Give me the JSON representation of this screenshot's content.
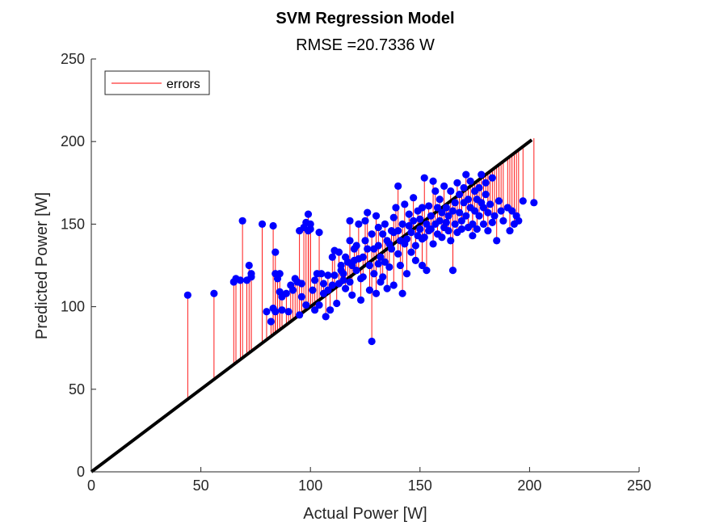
{
  "chart_data": {
    "type": "scatter",
    "title": "SVM Regression Model",
    "subtitle": "RMSE =20.7336 W",
    "xlabel": "Actual Power [W]",
    "ylabel": "Predicted Power [W]",
    "xlim": [
      0,
      250
    ],
    "ylim": [
      0,
      250
    ],
    "xticks": [
      "0",
      "50",
      "100",
      "150",
      "200",
      "250"
    ],
    "yticks": [
      "0",
      "50",
      "100",
      "150",
      "200",
      "250"
    ],
    "grid": false,
    "legend": {
      "position": "top-left",
      "entries": [
        "errors"
      ]
    },
    "colors": {
      "points": "#0000ff",
      "errors": "#ff0000",
      "reference": "#000000"
    },
    "reference_line": {
      "x": [
        0,
        201
      ],
      "y": [
        0,
        201
      ]
    },
    "series": [
      {
        "name": "errors",
        "points": [
          [
            44,
            107
          ],
          [
            56,
            108
          ],
          [
            65,
            115
          ],
          [
            66,
            117
          ],
          [
            68,
            116
          ],
          [
            69,
            152
          ],
          [
            71,
            116
          ],
          [
            72,
            125
          ],
          [
            73,
            118
          ],
          [
            73,
            120
          ],
          [
            78,
            150
          ],
          [
            80,
            97
          ],
          [
            82,
            91
          ],
          [
            83,
            99
          ],
          [
            83,
            149
          ],
          [
            84,
            97
          ],
          [
            84,
            120
          ],
          [
            84,
            133
          ],
          [
            85,
            117
          ],
          [
            86,
            120
          ],
          [
            86,
            109
          ],
          [
            87,
            106
          ],
          [
            87,
            98
          ],
          [
            89,
            108
          ],
          [
            90,
            97
          ],
          [
            91,
            113
          ],
          [
            92,
            110
          ],
          [
            93,
            117
          ],
          [
            94,
            115
          ],
          [
            95,
            95
          ],
          [
            95,
            146
          ],
          [
            96,
            114
          ],
          [
            96,
            106
          ],
          [
            97,
            148
          ],
          [
            98,
            101
          ],
          [
            98,
            151
          ],
          [
            99,
            156
          ],
          [
            99,
            146
          ],
          [
            100,
            150
          ],
          [
            100,
            147
          ],
          [
            101,
            110
          ],
          [
            102,
            98
          ],
          [
            102,
            116
          ],
          [
            103,
            120
          ],
          [
            104,
            101
          ],
          [
            104,
            145
          ],
          [
            105,
            120
          ],
          [
            106,
            108
          ],
          [
            106,
            114
          ],
          [
            107,
            94
          ],
          [
            108,
            119
          ],
          [
            108,
            110
          ],
          [
            109,
            98
          ],
          [
            110,
            113
          ],
          [
            110,
            130
          ],
          [
            111,
            134
          ],
          [
            111,
            119
          ],
          [
            112,
            102
          ],
          [
            113,
            114
          ],
          [
            113,
            133
          ],
          [
            114,
            125
          ],
          [
            114,
            122
          ],
          [
            115,
            120
          ],
          [
            115,
            116
          ],
          [
            116,
            111
          ],
          [
            116,
            130
          ],
          [
            117,
            127
          ],
          [
            118,
            140
          ],
          [
            118,
            152
          ],
          [
            118,
            115
          ],
          [
            119,
            107
          ],
          [
            119,
            125
          ],
          [
            120,
            135
          ],
          [
            120,
            128
          ],
          [
            121,
            137
          ],
          [
            121,
            122
          ],
          [
            122,
            150
          ],
          [
            122,
            129
          ],
          [
            123,
            117
          ],
          [
            123,
            104
          ],
          [
            124,
            130
          ],
          [
            124,
            118
          ],
          [
            125,
            140
          ],
          [
            125,
            152
          ],
          [
            126,
            157
          ],
          [
            126,
            135
          ],
          [
            127,
            110
          ],
          [
            127,
            125
          ],
          [
            128,
            144
          ],
          [
            128,
            79
          ],
          [
            129,
            120
          ],
          [
            129,
            135
          ],
          [
            130,
            108
          ],
          [
            130,
            155
          ],
          [
            131,
            126
          ],
          [
            131,
            137
          ],
          [
            131,
            148
          ],
          [
            132,
            115
          ],
          [
            132,
            130
          ],
          [
            133,
            118
          ],
          [
            133,
            144
          ],
          [
            134,
            127
          ],
          [
            134,
            150
          ],
          [
            135,
            140
          ],
          [
            135,
            111
          ],
          [
            136,
            138
          ],
          [
            136,
            124
          ],
          [
            137,
            135
          ],
          [
            137,
            146
          ],
          [
            138,
            113
          ],
          [
            138,
            145
          ],
          [
            138,
            154
          ],
          [
            139,
            160
          ],
          [
            140,
            132
          ],
          [
            140,
            146
          ],
          [
            140,
            173
          ],
          [
            141,
            140
          ],
          [
            141,
            125
          ],
          [
            142,
            150
          ],
          [
            142,
            108
          ],
          [
            143,
            138
          ],
          [
            143,
            162
          ],
          [
            144,
            141
          ],
          [
            144,
            120
          ],
          [
            145,
            149
          ],
          [
            145,
            156
          ],
          [
            146,
            133
          ],
          [
            146,
            145
          ],
          [
            147,
            152
          ],
          [
            147,
            166
          ],
          [
            148,
            137
          ],
          [
            148,
            128
          ],
          [
            149,
            143
          ],
          [
            149,
            158
          ],
          [
            150,
            147
          ],
          [
            150,
            153
          ],
          [
            151,
            160
          ],
          [
            151,
            141
          ],
          [
            151,
            125
          ],
          [
            152,
            178
          ],
          [
            152,
            142
          ],
          [
            153,
            150
          ],
          [
            153,
            122
          ],
          [
            154,
            146
          ],
          [
            154,
            161
          ],
          [
            155,
            155
          ],
          [
            155,
            147
          ],
          [
            156,
            176
          ],
          [
            156,
            138
          ],
          [
            157,
            150
          ],
          [
            157,
            170
          ],
          [
            158,
            144
          ],
          [
            158,
            160
          ],
          [
            159,
            152
          ],
          [
            159,
            165
          ],
          [
            160,
            142
          ],
          [
            160,
            157
          ],
          [
            161,
            148
          ],
          [
            161,
            173
          ],
          [
            162,
            151
          ],
          [
            162,
            160
          ],
          [
            163,
            146
          ],
          [
            163,
            155
          ],
          [
            164,
            170
          ],
          [
            164,
            140
          ],
          [
            165,
            158
          ],
          [
            165,
            122
          ],
          [
            166,
            150
          ],
          [
            166,
            163
          ],
          [
            167,
            175
          ],
          [
            167,
            145
          ],
          [
            168,
            157
          ],
          [
            168,
            168
          ],
          [
            169,
            152
          ],
          [
            169,
            147
          ],
          [
            170,
            163
          ],
          [
            170,
            172
          ],
          [
            171,
            180
          ],
          [
            171,
            155
          ],
          [
            172,
            148
          ],
          [
            172,
            165
          ],
          [
            173,
            160
          ],
          [
            173,
            176
          ],
          [
            174,
            150
          ],
          [
            174,
            143
          ],
          [
            175,
            170
          ],
          [
            175,
            158
          ],
          [
            176,
            165
          ],
          [
            176,
            147
          ],
          [
            177,
            155
          ],
          [
            177,
            172
          ],
          [
            178,
            163
          ],
          [
            178,
            180
          ],
          [
            179,
            150
          ],
          [
            179,
            160
          ],
          [
            180,
            168
          ],
          [
            180,
            175
          ],
          [
            181,
            157
          ],
          [
            181,
            146
          ],
          [
            182,
            162
          ],
          [
            183,
            178
          ],
          [
            183,
            151
          ],
          [
            184,
            155
          ],
          [
            185,
            140
          ],
          [
            186,
            164
          ],
          [
            187,
            158
          ],
          [
            188,
            152
          ],
          [
            190,
            160
          ],
          [
            191,
            146
          ],
          [
            192,
            158
          ],
          [
            193,
            150
          ],
          [
            194,
            155
          ],
          [
            195,
            152
          ],
          [
            197,
            164
          ],
          [
            202,
            163
          ]
        ]
      }
    ]
  }
}
